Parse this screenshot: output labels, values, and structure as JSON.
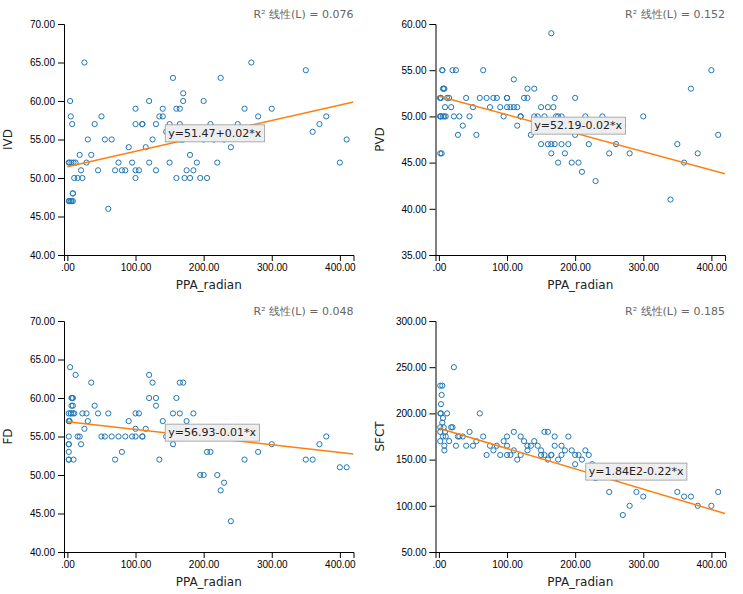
{
  "chart_data": [
    {
      "type": "scatter",
      "subtitle": "R² 线性(L) = 0.076",
      "xlabel": "PPA_radian",
      "ylabel": "IVD",
      "xlim": [
        -5,
        420
      ],
      "xticks": [
        {
          "value": 0,
          "label": ".00"
        },
        {
          "value": 100,
          "label": "100.00"
        },
        {
          "value": 200,
          "label": "200.00"
        },
        {
          "value": 300,
          "label": "300.00"
        },
        {
          "value": 400,
          "label": "400.00"
        }
      ],
      "ylim": [
        40,
        70
      ],
      "yticks": [
        {
          "value": 40,
          "label": "40.00"
        },
        {
          "value": 45,
          "label": "45.00"
        },
        {
          "value": 50,
          "label": "50.00"
        },
        {
          "value": 55,
          "label": "55.00"
        },
        {
          "value": 60,
          "label": "60.00"
        },
        {
          "value": 65,
          "label": "65.00"
        },
        {
          "value": 70,
          "label": "70.00"
        }
      ],
      "grid": false,
      "annotations": [
        {
          "text": "y=51.47+0.02*x",
          "x": 148,
          "y": 55.8
        }
      ],
      "series": [
        {
          "type": "scatter",
          "marker": "circle-open",
          "x": [
            2,
            2,
            3,
            3,
            4,
            5,
            5,
            6,
            6,
            7,
            8,
            8,
            8,
            9,
            10,
            12,
            15,
            18,
            20,
            22,
            25,
            28,
            30,
            35,
            40,
            45,
            50,
            55,
            60,
            65,
            70,
            75,
            80,
            85,
            90,
            95,
            100,
            100,
            100,
            100,
            105,
            110,
            110,
            115,
            120,
            120,
            125,
            130,
            130,
            135,
            140,
            140,
            145,
            150,
            150,
            155,
            155,
            160,
            160,
            160,
            165,
            165,
            165,
            168,
            170,
            170,
            170,
            172,
            175,
            175,
            180,
            180,
            185,
            185,
            190,
            195,
            200,
            200,
            205,
            210,
            215,
            220,
            225,
            230,
            240,
            250,
            260,
            270,
            280,
            300,
            350,
            360,
            370,
            380,
            400,
            410
          ],
          "values": [
            52,
            47,
            52,
            47,
            60,
            58,
            47,
            47,
            52,
            57,
            48,
            47,
            48,
            52,
            50,
            52,
            50,
            53,
            51,
            50,
            65,
            52,
            55,
            53,
            57,
            51,
            58,
            55,
            46,
            55,
            51,
            52,
            51,
            51,
            54,
            52,
            59,
            51,
            57,
            50,
            51,
            57,
            57,
            54,
            52,
            60,
            55,
            57,
            51,
            58,
            58,
            59,
            56,
            52,
            57,
            63,
            56,
            59,
            56,
            50,
            55,
            57,
            59,
            55,
            61,
            60,
            55,
            50,
            51,
            56,
            50,
            53,
            56,
            51,
            52,
            50,
            55,
            60,
            50,
            57,
            55,
            52,
            63,
            55,
            54,
            57,
            59,
            65,
            58,
            59,
            64,
            56,
            57,
            58,
            52,
            55
          ]
        },
        {
          "type": "line",
          "line_style": "solid",
          "x": [
            0,
            420
          ],
          "values": [
            51.47,
            59.87
          ]
        }
      ]
    },
    {
      "type": "scatter",
      "subtitle": "R² 线性(L) = 0.152",
      "xlabel": "PPA_radian",
      "ylabel": "PVD",
      "xlim": [
        -5,
        420
      ],
      "xticks": [
        {
          "value": 0,
          "label": ".00"
        },
        {
          "value": 100,
          "label": "100.00"
        },
        {
          "value": 200,
          "label": "200.00"
        },
        {
          "value": 300,
          "label": "300.00"
        },
        {
          "value": 400,
          "label": "400.00"
        }
      ],
      "ylim": [
        35,
        60
      ],
      "yticks": [
        {
          "value": 35,
          "label": "35.00"
        },
        {
          "value": 40,
          "label": "40.00"
        },
        {
          "value": 45,
          "label": "45.00"
        },
        {
          "value": 50,
          "label": "50.00"
        },
        {
          "value": 55,
          "label": "55.00"
        },
        {
          "value": 60,
          "label": "60.00"
        }
      ],
      "grid": false,
      "annotations": [
        {
          "text": "y=52.19-0.02*x",
          "x": 140,
          "y": 49.0
        }
      ],
      "series": [
        {
          "type": "scatter",
          "marker": "circle-open",
          "x": [
            2,
            2,
            2,
            2,
            2,
            3,
            3,
            4,
            5,
            5,
            6,
            6,
            7,
            8,
            8,
            9,
            10,
            12,
            15,
            18,
            20,
            22,
            25,
            28,
            30,
            35,
            40,
            45,
            50,
            55,
            60,
            65,
            70,
            75,
            80,
            85,
            90,
            95,
            100,
            100,
            100,
            105,
            110,
            110,
            115,
            115,
            120,
            120,
            125,
            130,
            130,
            135,
            140,
            140,
            145,
            150,
            150,
            155,
            160,
            160,
            165,
            165,
            165,
            168,
            170,
            170,
            172,
            175,
            175,
            180,
            180,
            185,
            190,
            195,
            200,
            200,
            205,
            210,
            215,
            220,
            230,
            240,
            250,
            260,
            270,
            280,
            300,
            340,
            350,
            360,
            370,
            380,
            400,
            410
          ],
          "values": [
            52,
            50,
            46,
            50,
            52,
            50,
            52,
            46,
            55,
            55,
            50,
            53,
            53,
            50,
            53,
            51,
            50,
            52,
            52,
            51,
            55,
            50,
            55,
            48,
            50,
            49,
            52,
            50,
            51,
            48,
            52,
            55,
            52,
            51,
            52,
            52,
            51,
            50,
            51,
            52,
            52,
            51,
            51,
            54,
            51,
            49,
            50,
            50,
            52,
            53,
            52,
            48,
            53,
            50,
            50,
            51,
            47,
            50,
            47,
            51,
            59,
            47,
            46,
            51,
            52,
            47,
            50,
            45,
            50,
            47,
            50,
            46,
            47,
            45,
            52,
            48,
            45,
            44,
            50,
            47,
            43,
            50,
            46,
            47,
            49,
            46,
            50,
            41,
            47,
            45,
            53,
            46,
            55,
            48
          ]
        },
        {
          "type": "line",
          "line_style": "solid",
          "x": [
            0,
            420
          ],
          "values": [
            52.19,
            43.79
          ]
        }
      ]
    },
    {
      "type": "scatter",
      "subtitle": "R² 线性(L) = 0.048",
      "xlabel": "PPA_radian",
      "ylabel": "FD",
      "xlim": [
        -5,
        420
      ],
      "xticks": [
        {
          "value": 0,
          "label": ".00"
        },
        {
          "value": 100,
          "label": "100.00"
        },
        {
          "value": 200,
          "label": "200.00"
        },
        {
          "value": 300,
          "label": "300.00"
        },
        {
          "value": 400,
          "label": "400.00"
        }
      ],
      "ylim": [
        40,
        70
      ],
      "yticks": [
        {
          "value": 40,
          "label": "40.00"
        },
        {
          "value": 45,
          "label": "45.00"
        },
        {
          "value": 50,
          "label": "50.00"
        },
        {
          "value": 55,
          "label": "55.00"
        },
        {
          "value": 60,
          "label": "60.00"
        },
        {
          "value": 65,
          "label": "65.00"
        },
        {
          "value": 70,
          "label": "70.00"
        }
      ],
      "grid": false,
      "annotations": [
        {
          "text": "y=56.93-0.01*x",
          "x": 148,
          "y": 55.5
        }
      ],
      "series": [
        {
          "type": "scatter",
          "marker": "circle-open",
          "x": [
            2,
            2,
            2,
            2,
            2,
            2,
            2,
            2,
            3,
            3,
            4,
            5,
            5,
            6,
            6,
            7,
            8,
            8,
            8,
            9,
            10,
            12,
            15,
            18,
            20,
            22,
            25,
            28,
            30,
            35,
            40,
            45,
            50,
            55,
            60,
            65,
            70,
            75,
            80,
            85,
            90,
            95,
            100,
            100,
            100,
            105,
            110,
            110,
            115,
            120,
            120,
            125,
            130,
            130,
            135,
            140,
            145,
            150,
            150,
            155,
            155,
            160,
            160,
            160,
            165,
            165,
            165,
            168,
            170,
            170,
            175,
            175,
            180,
            180,
            185,
            190,
            195,
            200,
            200,
            205,
            210,
            215,
            220,
            225,
            230,
            240,
            250,
            260,
            280,
            300,
            350,
            360,
            370,
            380,
            400,
            410
          ],
          "values": [
            58,
            57,
            55,
            54,
            54,
            53,
            52,
            52,
            57,
            57,
            64,
            58,
            58,
            59,
            60,
            60,
            60,
            59,
            58,
            52,
            58,
            63,
            55,
            55,
            54,
            58,
            56,
            58,
            57,
            62,
            59,
            58,
            55,
            55,
            58,
            55,
            52,
            55,
            53,
            55,
            57,
            55,
            58,
            55,
            56,
            58,
            55,
            55,
            56,
            63,
            60,
            62,
            59,
            60,
            52,
            57,
            55,
            55,
            56,
            58,
            54,
            60,
            55,
            55,
            62,
            55,
            58,
            55,
            56,
            62,
            55,
            57,
            55,
            55,
            58,
            55,
            50,
            50,
            55,
            53,
            53,
            56,
            50,
            48,
            49,
            44,
            55,
            52,
            53,
            54,
            52,
            52,
            54,
            55,
            51,
            51
          ]
        },
        {
          "type": "line",
          "line_style": "solid",
          "x": [
            0,
            420
          ],
          "values": [
            56.93,
            52.73
          ]
        }
      ]
    },
    {
      "type": "scatter",
      "subtitle": "R² 线性(L) = 0.185",
      "xlabel": "PPA_radian",
      "ylabel": "SFCT",
      "xlim": [
        -5,
        420
      ],
      "xticks": [
        {
          "value": 0,
          "label": ".00"
        },
        {
          "value": 100,
          "label": "100.00"
        },
        {
          "value": 200,
          "label": "200.00"
        },
        {
          "value": 300,
          "label": "300.00"
        },
        {
          "value": 400,
          "label": "400.00"
        }
      ],
      "ylim": [
        50,
        300
      ],
      "yticks": [
        {
          "value": 50,
          "label": "50.00"
        },
        {
          "value": 100,
          "label": "100.00"
        },
        {
          "value": 150,
          "label": "150.00"
        },
        {
          "value": 200,
          "label": "200.00"
        },
        {
          "value": 250,
          "label": "250.00"
        },
        {
          "value": 300,
          "label": "300.00"
        }
      ],
      "grid": false,
      "annotations": [
        {
          "text": "y=1.84E2-0.22*x",
          "x": 220,
          "y": 137
        }
      ],
      "series": [
        {
          "type": "scatter",
          "marker": "circle-open",
          "x": [
            2,
            2,
            2,
            2,
            2,
            3,
            3,
            4,
            5,
            5,
            6,
            6,
            7,
            8,
            8,
            9,
            10,
            12,
            15,
            18,
            20,
            22,
            25,
            28,
            30,
            35,
            40,
            45,
            50,
            55,
            60,
            65,
            70,
            75,
            80,
            85,
            90,
            95,
            100,
            100,
            100,
            105,
            110,
            110,
            115,
            120,
            120,
            125,
            130,
            130,
            135,
            140,
            145,
            150,
            150,
            155,
            155,
            160,
            160,
            165,
            165,
            170,
            170,
            175,
            180,
            180,
            185,
            190,
            195,
            200,
            200,
            205,
            210,
            215,
            220,
            225,
            230,
            240,
            250,
            260,
            270,
            280,
            290,
            300,
            350,
            360,
            370,
            380,
            400,
            410
          ],
          "values": [
            230,
            200,
            180,
            185,
            170,
            200,
            210,
            220,
            190,
            230,
            175,
            195,
            185,
            160,
            165,
            180,
            175,
            200,
            170,
            185,
            185,
            250,
            165,
            175,
            175,
            175,
            165,
            180,
            165,
            170,
            200,
            175,
            155,
            165,
            160,
            165,
            155,
            170,
            165,
            175,
            155,
            155,
            160,
            180,
            150,
            155,
            175,
            170,
            160,
            165,
            165,
            170,
            165,
            160,
            155,
            180,
            155,
            150,
            180,
            155,
            155,
            165,
            175,
            150,
            165,
            155,
            160,
            175,
            160,
            145,
            155,
            155,
            150,
            160,
            155,
            145,
            130,
            140,
            115,
            130,
            90,
            100,
            115,
            110,
            115,
            110,
            110,
            100,
            100,
            115
          ]
        },
        {
          "type": "line",
          "line_style": "solid",
          "x": [
            0,
            420
          ],
          "values": [
            184,
            91.6
          ]
        }
      ]
    }
  ]
}
